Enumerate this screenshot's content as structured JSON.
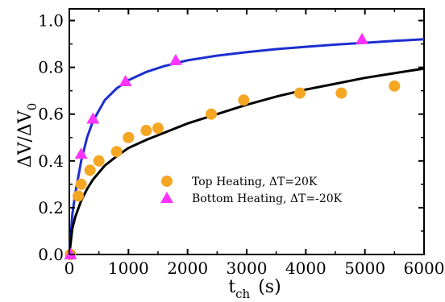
{
  "chart_data": {
    "type": "scatter",
    "title": "",
    "xlabel": {
      "main": "t",
      "sub": "ch",
      "unit": "(s)"
    },
    "ylabel": {
      "main": "ΔV/ΔV",
      "sub": "0"
    },
    "xlim": [
      0,
      6000
    ],
    "ylim": [
      0,
      1.05
    ],
    "xticks": [
      "0",
      "1000",
      "2000",
      "3000",
      "4000",
      "5000",
      "6000"
    ],
    "yticks": [
      "0.0",
      "0.2",
      "0.4",
      "0.6",
      "0.8",
      "1.0"
    ],
    "grid": false,
    "legend_position": "center-right",
    "series": [
      {
        "name": "Top Heating, ΔT=20K",
        "marker": "circle",
        "color": "#f5a623",
        "x": [
          20,
          150,
          200,
          350,
          500,
          800,
          1000,
          1300,
          1500,
          2400,
          2950,
          3900,
          4600,
          5500
        ],
        "y": [
          0.0,
          0.25,
          0.3,
          0.36,
          0.4,
          0.44,
          0.5,
          0.53,
          0.54,
          0.6,
          0.66,
          0.69,
          0.69,
          0.72
        ]
      },
      {
        "name": "Bottom Heating, ΔT=-20K",
        "marker": "triangle",
        "color": "#ff33ff",
        "x": [
          20,
          200,
          400,
          950,
          1800,
          4950
        ],
        "y": [
          0.0,
          0.43,
          0.58,
          0.74,
          0.83,
          0.92
        ]
      }
    ],
    "fits": [
      {
        "color": "#1d2ecf",
        "x": [
          0,
          50,
          100,
          200,
          300,
          400,
          600,
          800,
          1000,
          1300,
          1600,
          2000,
          2500,
          3000,
          3500,
          4000,
          4500,
          5000,
          5500,
          6000
        ],
        "y": [
          0.0,
          0.17,
          0.26,
          0.4,
          0.5,
          0.57,
          0.66,
          0.71,
          0.745,
          0.78,
          0.805,
          0.83,
          0.85,
          0.865,
          0.878,
          0.888,
          0.897,
          0.905,
          0.913,
          0.92
        ]
      },
      {
        "color": "#000000",
        "x": [
          0,
          50,
          100,
          200,
          300,
          400,
          600,
          800,
          1000,
          1300,
          1600,
          2000,
          2500,
          3000,
          3500,
          4000,
          4500,
          5000,
          5500,
          6000
        ],
        "y": [
          0.0,
          0.11,
          0.16,
          0.23,
          0.28,
          0.32,
          0.38,
          0.42,
          0.455,
          0.49,
          0.52,
          0.56,
          0.6,
          0.64,
          0.675,
          0.705,
          0.73,
          0.755,
          0.775,
          0.795
        ]
      }
    ]
  }
}
